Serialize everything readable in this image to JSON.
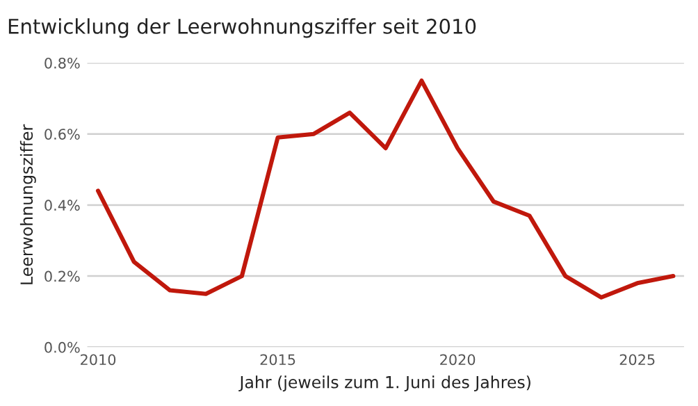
{
  "chart_data": {
    "type": "line",
    "title": "Entwicklung der Leerwohnungsziffer seit 2010",
    "xlabel": "Jahr (jeweils zum 1. Juni des Jahres)",
    "ylabel": "Leerwohnungsziffer",
    "x": [
      2010,
      2011,
      2012,
      2013,
      2014,
      2015,
      2016,
      2017,
      2018,
      2019,
      2020,
      2021,
      2022,
      2023,
      2024,
      2025,
      2026
    ],
    "series": [
      {
        "color": "#c0180c",
        "values": [
          0.44,
          0.24,
          0.16,
          0.15,
          0.2,
          0.59,
          0.6,
          0.66,
          0.56,
          0.75,
          0.56,
          0.41,
          0.37,
          0.2,
          0.14,
          0.18,
          0.2
        ]
      }
    ],
    "xlim": [
      2009.7,
      2026.3
    ],
    "xticks": [
      2010,
      2015,
      2020,
      2025
    ],
    "ylim": [
      0,
      0.8
    ],
    "yticks": [
      {
        "value": 0,
        "label": "0.0%"
      },
      {
        "value": 0.2,
        "label": "0.2%"
      },
      {
        "value": 0.4,
        "label": "0.4%"
      },
      {
        "value": 0.6,
        "label": "0.6%"
      },
      {
        "value": 0.8,
        "label": "0.8%"
      }
    ],
    "grid": "y",
    "marker": "none",
    "line_style": "solid"
  }
}
